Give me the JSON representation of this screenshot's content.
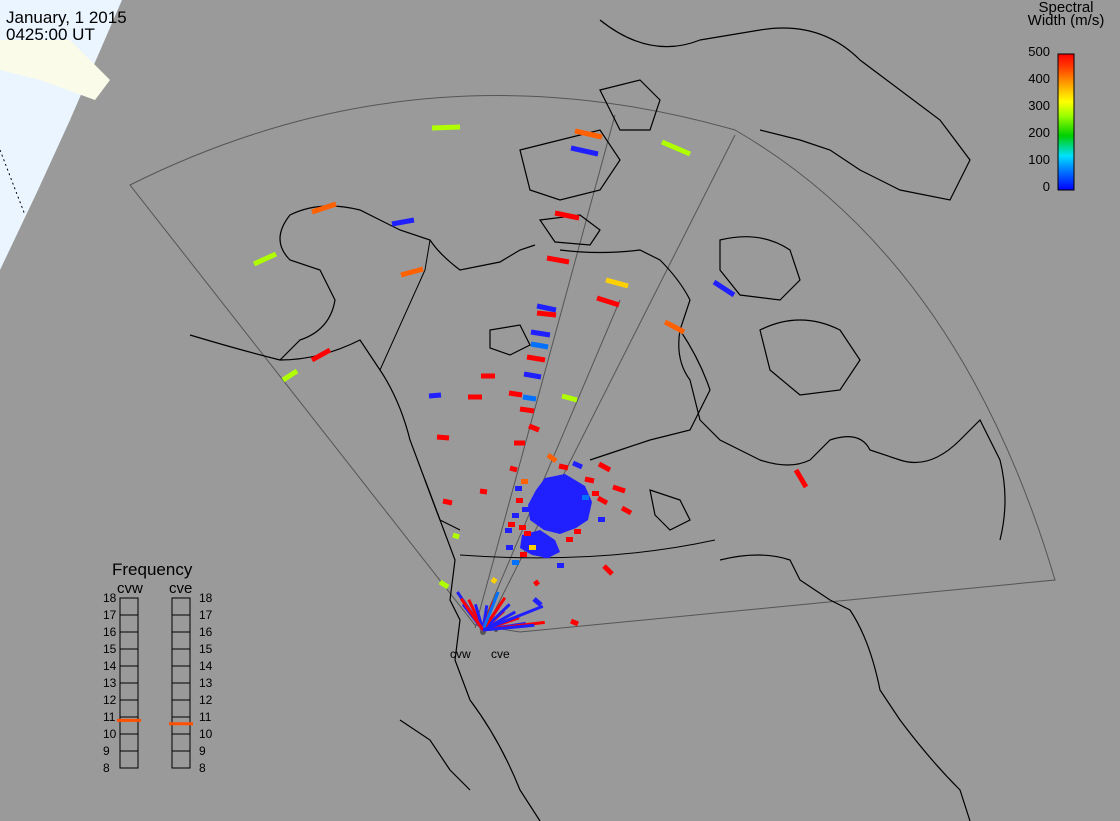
{
  "title": {
    "date": "January, 1 2015",
    "time": "0425:00 UT"
  },
  "colorbar": {
    "title_line1": "Spectral",
    "title_line2": "Width (m/s)",
    "ticks": [
      "500",
      "400",
      "300",
      "200",
      "100",
      "0"
    ],
    "colors": [
      "#0000ff",
      "#0080ff",
      "#00e0ff",
      "#00d000",
      "#a0ff00",
      "#ffff00",
      "#ffa000",
      "#ff5000",
      "#ff0000"
    ]
  },
  "frequency": {
    "title": "Frequency",
    "radars": [
      "cvw",
      "cve"
    ],
    "ticks": [
      "18",
      "17",
      "16",
      "15",
      "14",
      "13",
      "12",
      "11",
      "10",
      "9",
      "8"
    ],
    "values": [
      10.8,
      10.6
    ],
    "marker_color": "#ff5000"
  },
  "sites": [
    "cvw",
    "cve"
  ],
  "map": {
    "background": "#9a9a9a",
    "night_color": "#e8f4ff",
    "coast_color": "#000000"
  }
}
